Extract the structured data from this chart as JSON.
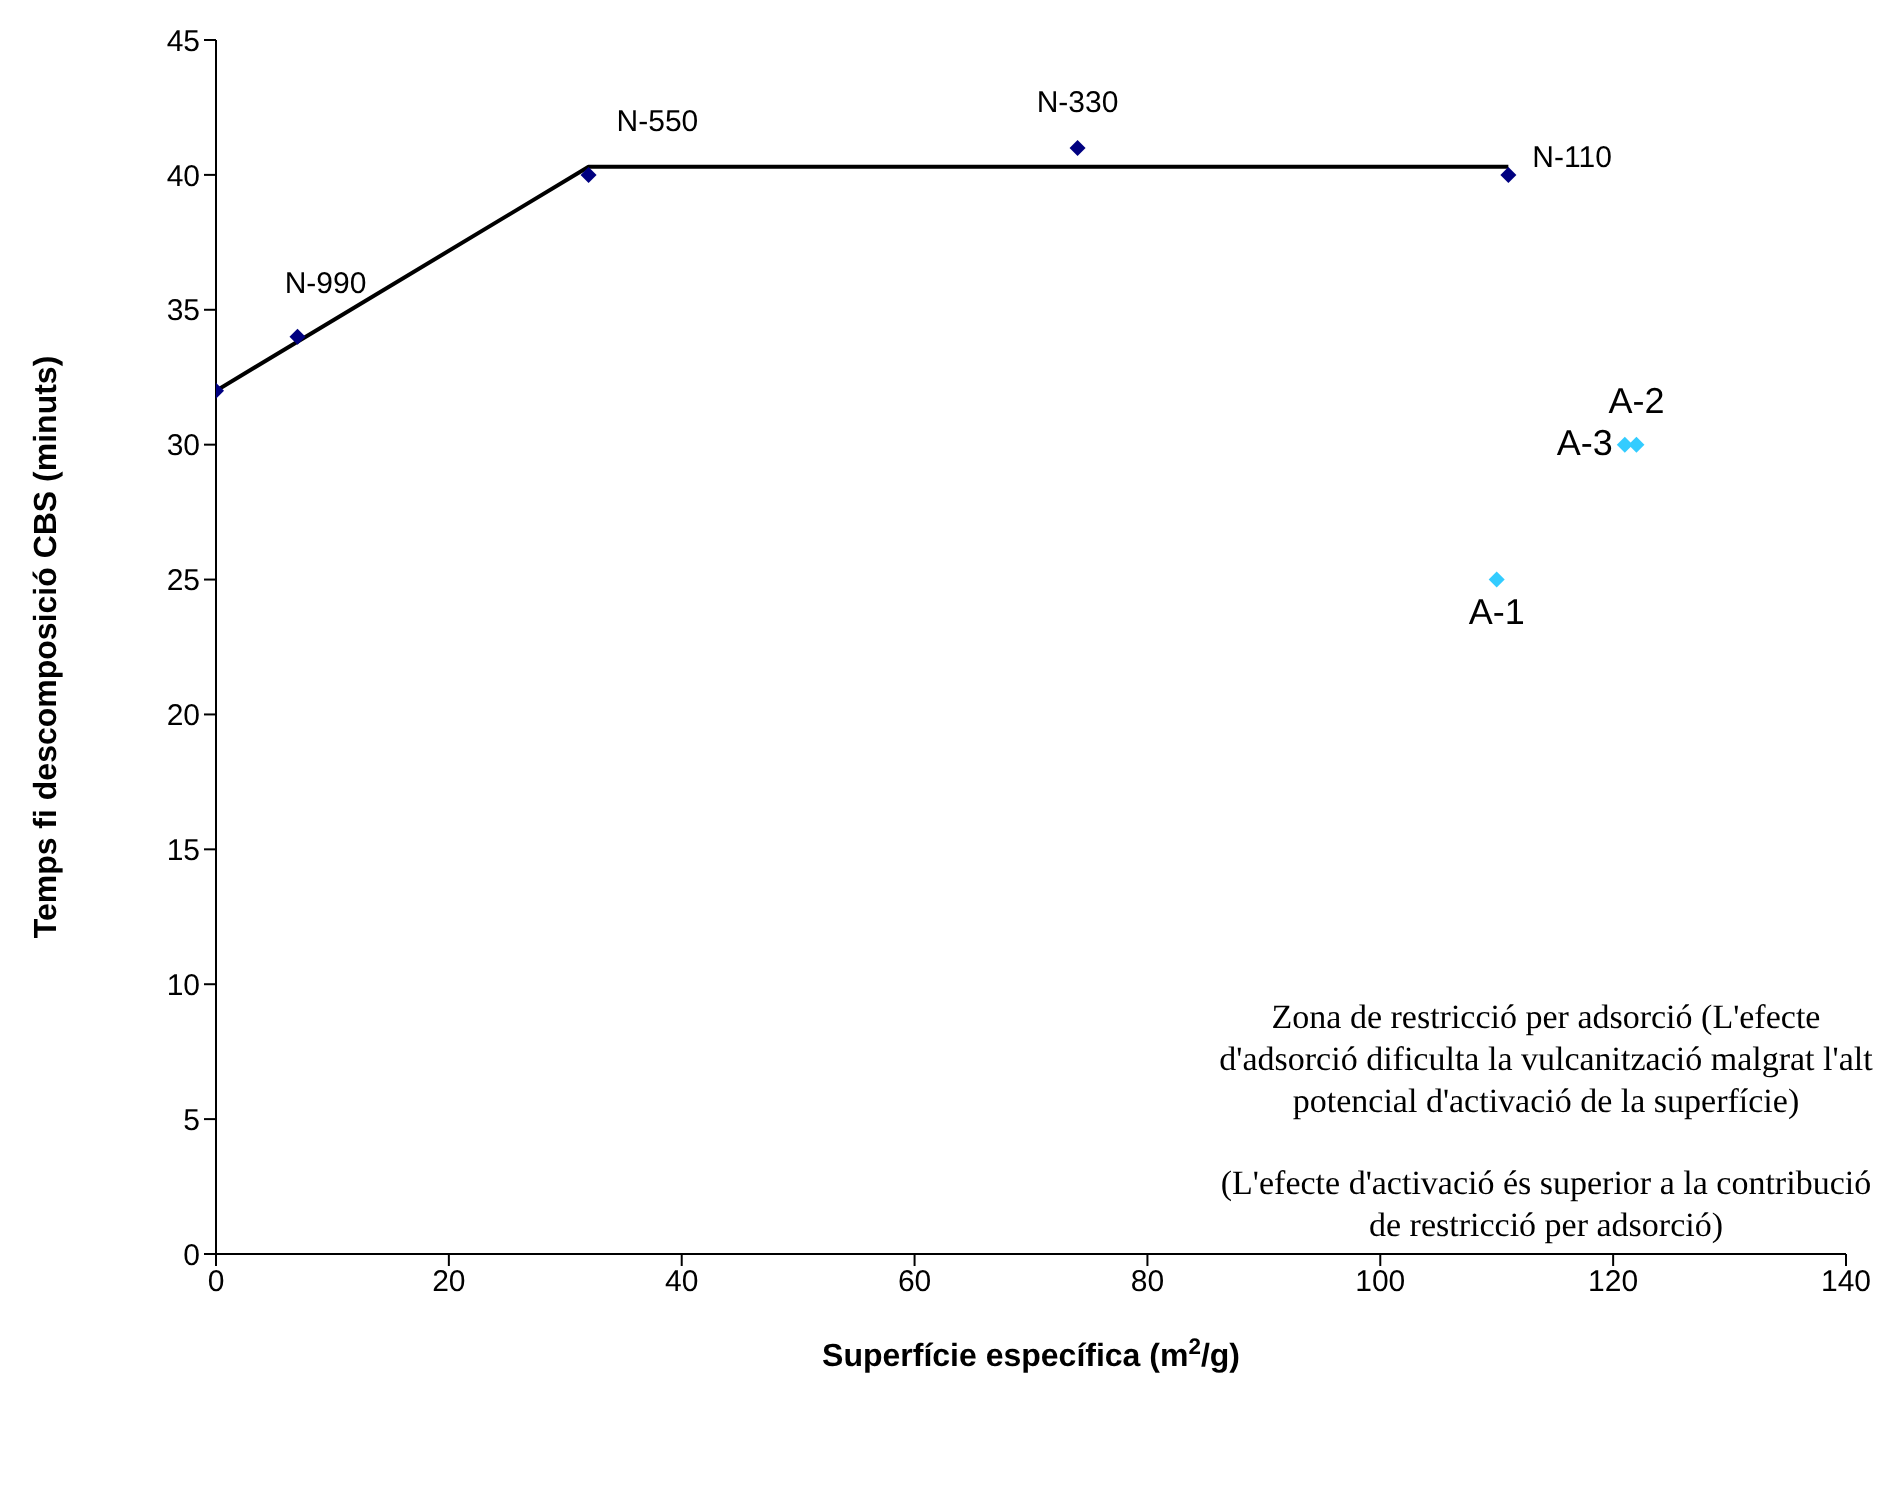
{
  "chart_data": {
    "type": "scatter",
    "xlabel": "Superfície específica (m$^{2}$/g)",
    "ylabel": "Temps fi descomposició CBS (minuts)",
    "xlim": [
      0,
      140
    ],
    "xticks": [
      0,
      20,
      40,
      60,
      80,
      100,
      120,
      140
    ],
    "ylim": [
      0,
      45
    ],
    "yticks": [
      0,
      5,
      10,
      15,
      20,
      25,
      30,
      35,
      40,
      45
    ],
    "grid": false,
    "legend": false,
    "marker": "diamond",
    "series": [
      {
        "type": "line",
        "color": "#000000",
        "x": [
          0,
          32,
          111
        ],
        "values": [
          32,
          40.3,
          40.3
        ],
        "marker": "none"
      },
      {
        "color": "#000080",
        "x": [
          0,
          7,
          32,
          74,
          111
        ],
        "values": [
          32,
          34,
          40,
          41,
          40
        ]
      },
      {
        "color": "#33ccff",
        "x": [
          110,
          122,
          121
        ],
        "values": [
          25,
          30,
          30
        ]
      }
    ],
    "annotations": [
      {
        "text": "N-990",
        "x": 7,
        "y": 34
      },
      {
        "text": "N-550",
        "x": 32,
        "y": 40
      },
      {
        "text": "N-330",
        "x": 74,
        "y": 41
      },
      {
        "text": "N-110",
        "x": 111,
        "y": 40
      },
      {
        "text": "A-1",
        "x": 110,
        "y": 25
      },
      {
        "text": "A-2",
        "x": 122,
        "y": 30
      },
      {
        "text": "A-3",
        "x": 121,
        "y": 30
      },
      "Zona de restricció per adsorció (L'efecte d'adsorció dificulta la vulcanització malgrat l'alt potencial d'activació de la superfície)",
      "(L'efecte d'activació és superior a la contribució de restricció per adsorció)"
    ]
  }
}
